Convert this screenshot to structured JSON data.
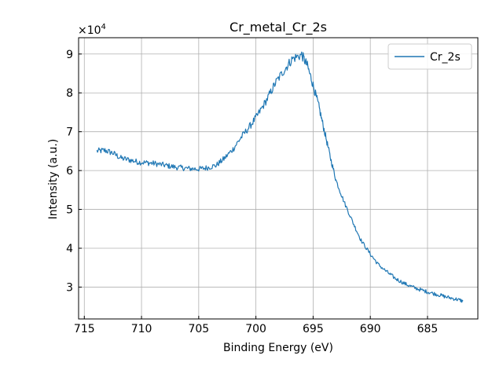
{
  "chart_data": {
    "type": "line",
    "title": "Cr_metal_Cr_2s",
    "xlabel": "Binding Energy (eV)",
    "ylabel": "Intensity (a.u.)",
    "x_inverted": true,
    "xlim": [
      715.5,
      680.6
    ],
    "ylim": [
      2.18,
      9.42
    ],
    "y_scale_label": "×10",
    "y_scale_exponent": "4",
    "xticks": [
      715,
      710,
      705,
      700,
      695,
      690,
      685
    ],
    "yticks": [
      3,
      4,
      5,
      6,
      7,
      8,
      9
    ],
    "grid": true,
    "legend_position": "top-right",
    "tick_direction": "in",
    "series_color": "#1f77b4",
    "series": [
      {
        "name": "Cr_2s",
        "color": "#1f77b4",
        "points": [
          [
            713.9,
            6.5
          ],
          [
            713.2,
            6.52
          ],
          [
            712.5,
            6.45
          ],
          [
            711.8,
            6.32
          ],
          [
            711.0,
            6.27
          ],
          [
            710.3,
            6.22
          ],
          [
            709.5,
            6.2
          ],
          [
            708.8,
            6.18
          ],
          [
            708.0,
            6.14
          ],
          [
            707.3,
            6.1
          ],
          [
            706.5,
            6.07
          ],
          [
            705.8,
            6.05
          ],
          [
            705.0,
            6.04
          ],
          [
            704.3,
            6.07
          ],
          [
            703.5,
            6.13
          ],
          [
            702.8,
            6.3
          ],
          [
            702.0,
            6.55
          ],
          [
            701.3,
            6.85
          ],
          [
            700.5,
            7.15
          ],
          [
            699.8,
            7.45
          ],
          [
            699.0,
            7.85
          ],
          [
            698.3,
            8.25
          ],
          [
            697.5,
            8.6
          ],
          [
            696.8,
            8.88
          ],
          [
            696.0,
            8.98
          ],
          [
            695.5,
            8.7
          ],
          [
            695.0,
            8.2
          ],
          [
            694.5,
            7.65
          ],
          [
            694.0,
            7.0
          ],
          [
            693.5,
            6.35
          ],
          [
            693.0,
            5.75
          ],
          [
            692.3,
            5.2
          ],
          [
            691.5,
            4.65
          ],
          [
            690.8,
            4.2
          ],
          [
            690.0,
            3.85
          ],
          [
            689.3,
            3.58
          ],
          [
            688.5,
            3.38
          ],
          [
            687.8,
            3.22
          ],
          [
            687.0,
            3.09
          ],
          [
            686.3,
            3.0
          ],
          [
            685.5,
            2.92
          ],
          [
            684.8,
            2.86
          ],
          [
            684.0,
            2.8
          ],
          [
            683.3,
            2.74
          ],
          [
            682.5,
            2.69
          ],
          [
            681.9,
            2.64
          ]
        ]
      }
    ]
  }
}
